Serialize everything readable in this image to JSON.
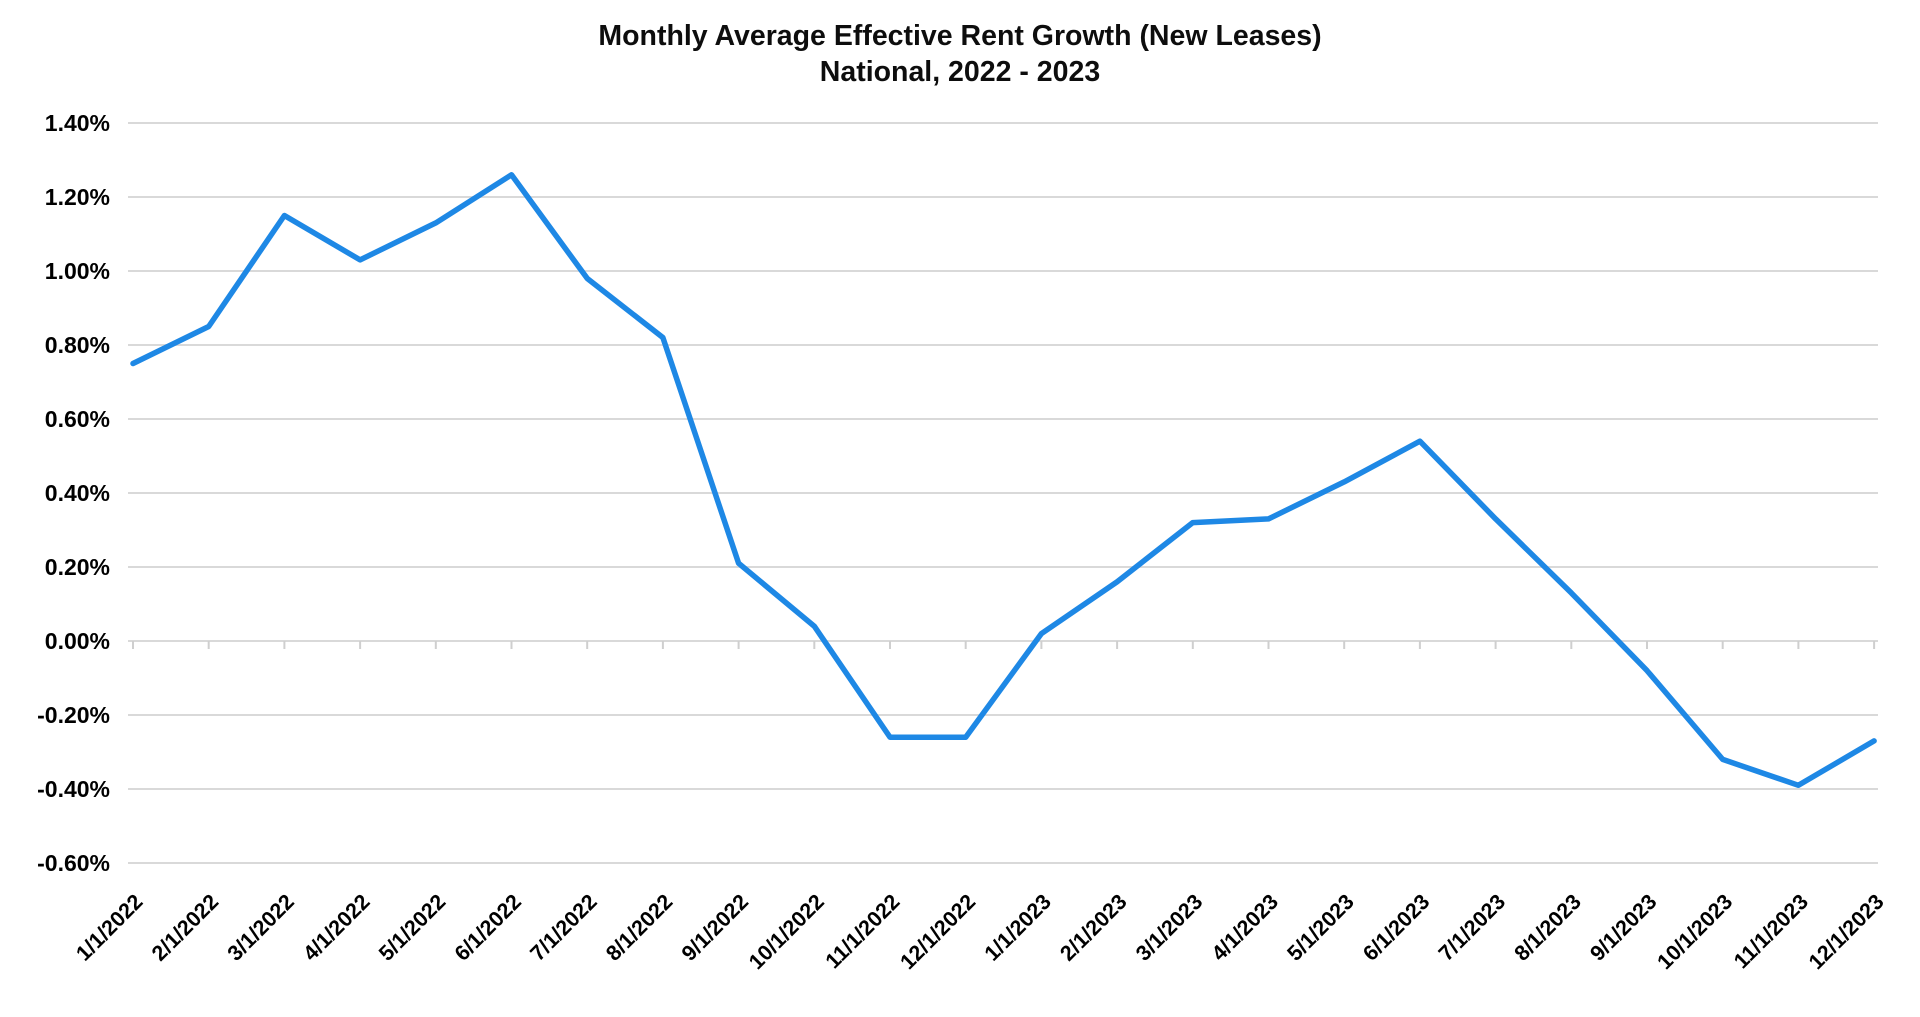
{
  "chart": {
    "title": "Monthly Average Effective Rent Growth (New Leases)",
    "subtitle": "National, 2022 - 2023"
  },
  "chart_data": {
    "type": "line",
    "title": "Monthly Average Effective Rent Growth (New Leases)",
    "subtitle": "National, 2022 - 2023",
    "xlabel": "",
    "ylabel": "",
    "categories": [
      "1/1/2022",
      "2/1/2022",
      "3/1/2022",
      "4/1/2022",
      "5/1/2022",
      "6/1/2022",
      "7/1/2022",
      "8/1/2022",
      "9/1/2022",
      "10/1/2022",
      "11/1/2022",
      "12/1/2022",
      "1/1/2023",
      "2/1/2023",
      "3/1/2023",
      "4/1/2023",
      "5/1/2023",
      "6/1/2023",
      "7/1/2023",
      "8/1/2023",
      "9/1/2023",
      "10/1/2023",
      "11/1/2023",
      "12/1/2023"
    ],
    "series": [
      {
        "name": "Monthly average effective rent growth (new leases)",
        "values": [
          0.75,
          0.85,
          1.15,
          1.03,
          1.13,
          1.26,
          0.98,
          0.82,
          0.21,
          0.04,
          -0.26,
          -0.26,
          0.02,
          0.16,
          0.32,
          0.33,
          0.43,
          0.54,
          0.33,
          0.13,
          -0.08,
          -0.32,
          -0.39,
          -0.27
        ]
      }
    ],
    "y_axis": {
      "min": -0.6,
      "max": 1.4,
      "step": 0.2,
      "tick_labels": [
        "1.40%",
        "1.20%",
        "1.00%",
        "0.80%",
        "0.60%",
        "0.40%",
        "0.20%",
        "0.00%",
        "-0.20%",
        "-0.40%",
        "-0.60%"
      ]
    },
    "x_axis": {
      "label_rotation_deg": 45,
      "tick_marks_on_zero_line": true
    },
    "grid": true,
    "legend": false,
    "colors": {
      "line": "#1e88e5",
      "grid": "#d9d9d9",
      "axis_tick": "#cfcfcf",
      "text": "#000000",
      "background": "#ffffff"
    }
  }
}
